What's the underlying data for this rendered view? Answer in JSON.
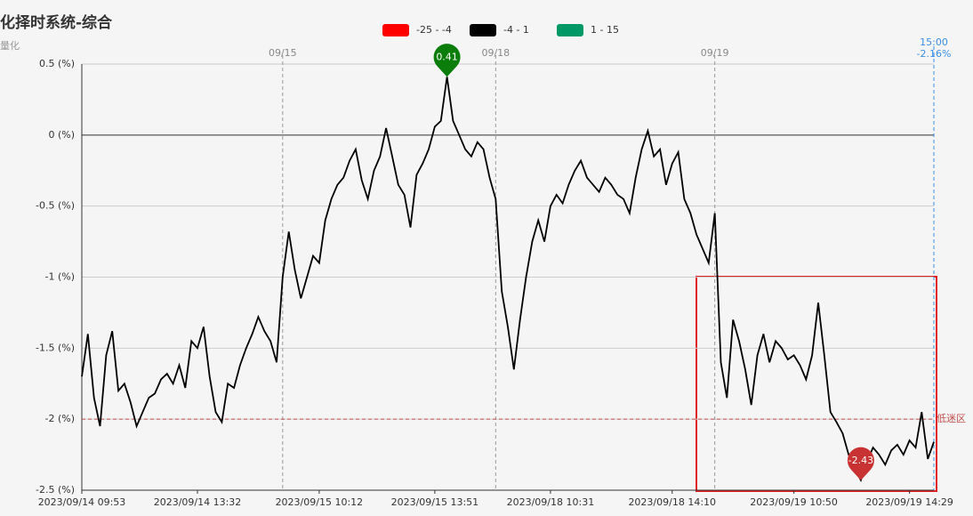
{
  "chart_data": {
    "type": "line",
    "title": "化择时系统-综合",
    "subtitle": "量化",
    "legend": [
      {
        "label": "-25 - -4",
        "color": "#ff0000"
      },
      {
        "label": "-4 - 1",
        "color": "#000000"
      },
      {
        "label": "1 - 15",
        "color": "#009966"
      }
    ],
    "categories": [
      "2023/09/14 09:53",
      null,
      null,
      null,
      null,
      null,
      null,
      null,
      null,
      null,
      null,
      null,
      null,
      null,
      null,
      null,
      null,
      null,
      null,
      "2023/09/14 13:32",
      null,
      null,
      null,
      null,
      null,
      null,
      null,
      null,
      null,
      null,
      null,
      null,
      null,
      null,
      null,
      null,
      null,
      null,
      null,
      "2023/09/15 10:12",
      null,
      null,
      null,
      null,
      null,
      null,
      null,
      null,
      null,
      null,
      null,
      null,
      null,
      null,
      null,
      null,
      null,
      null,
      "2023/09/15 13:51",
      null,
      null,
      null,
      null,
      null,
      null,
      null,
      null,
      null,
      null,
      null,
      null,
      null,
      null,
      null,
      null,
      null,
      null,
      "2023/09/18 10:31",
      null,
      null,
      null,
      null,
      null,
      null,
      null,
      null,
      null,
      null,
      null,
      null,
      null,
      null,
      null,
      null,
      null,
      null,
      null,
      "2023/09/18 14:10",
      null,
      null,
      null,
      null,
      null,
      null,
      null,
      null,
      null,
      null,
      null,
      null,
      null,
      null,
      null,
      null,
      null,
      null,
      null,
      "2023/09/19 10:50",
      null,
      null,
      null,
      null,
      null,
      null,
      null,
      null,
      null,
      null,
      null,
      null,
      null,
      null,
      null,
      null,
      null,
      null,
      "2023/09/19 14:29",
      null,
      null,
      null,
      null
    ],
    "series": [
      {
        "color": "#000000",
        "values": [
          -1.7,
          -1.4,
          -1.85,
          -2.05,
          -1.55,
          -1.38,
          -1.8,
          -1.75,
          -1.88,
          -2.05,
          -1.95,
          -1.85,
          -1.82,
          -1.72,
          -1.68,
          -1.75,
          -1.62,
          -1.78,
          -1.45,
          -1.5,
          -1.35,
          -1.7,
          -1.95,
          -2.02,
          -1.75,
          -1.78,
          -1.62,
          -1.5,
          -1.4,
          -1.28,
          -1.38,
          -1.45,
          -1.6,
          -1.0,
          -0.68,
          -0.95,
          -1.15,
          -1.0,
          -0.85,
          -0.9,
          -0.6,
          -0.45,
          -0.35,
          -0.3,
          -0.18,
          -0.1,
          -0.32,
          -0.45,
          -0.25,
          -0.15,
          0.05,
          -0.15,
          -0.35,
          -0.42,
          -0.65,
          -0.28,
          -0.2,
          -0.1,
          0.06,
          0.1,
          0.41,
          0.1,
          0.0,
          -0.1,
          -0.15,
          -0.05,
          -0.1,
          -0.3,
          -0.45,
          -1.1,
          -1.35,
          -1.65,
          -1.3,
          -1.0,
          -0.75,
          -0.6,
          -0.75,
          -0.5,
          -0.42,
          -0.48,
          -0.35,
          -0.25,
          -0.18,
          -0.3,
          -0.35,
          -0.4,
          -0.3,
          -0.35,
          -0.42,
          -0.45,
          -0.55,
          -0.3,
          -0.1,
          0.03,
          -0.15,
          -0.1,
          -0.35,
          -0.2,
          -0.12,
          -0.45,
          -0.55,
          -0.7,
          -0.8,
          -0.9,
          -0.55,
          -1.6,
          -1.85,
          -1.3,
          -1.45,
          -1.65,
          -1.9,
          -1.55,
          -1.4,
          -1.6,
          -1.45,
          -1.5,
          -1.58,
          -1.55,
          -1.62,
          -1.72,
          -1.55,
          -1.18,
          -1.55,
          -1.95,
          -2.02,
          -2.1,
          -2.25,
          -2.35,
          -2.43,
          -2.3,
          -2.2,
          -2.25,
          -2.32,
          -2.22,
          -2.18,
          -2.25,
          -2.15,
          -2.2,
          -1.95,
          -2.28,
          -2.16
        ]
      }
    ],
    "date_dividers": [
      {
        "at": 33,
        "label": "09/15"
      },
      {
        "at": 68,
        "label": "09/18"
      },
      {
        "at": 104,
        "label": "09/19"
      }
    ],
    "end_marker": {
      "time": "15:00",
      "label": "-2.16%"
    },
    "threshold": {
      "value": -2,
      "label": "低迷区",
      "color": "#c0504d"
    },
    "ylim": [
      -2.5,
      0.5
    ],
    "yticks": [
      {
        "value": -2.5,
        "label": "-2.5 (%)"
      },
      {
        "value": -2,
        "label": "-2 (%)"
      },
      {
        "value": -1.5,
        "label": "-1.5 (%)"
      },
      {
        "value": -1,
        "label": "-1 (%)"
      },
      {
        "value": -0.5,
        "label": "-0.5 (%)"
      },
      {
        "value": 0,
        "label": "0 (%)"
      },
      {
        "value": 0.5,
        "label": "0.5 (%)"
      }
    ],
    "grid": true
  }
}
